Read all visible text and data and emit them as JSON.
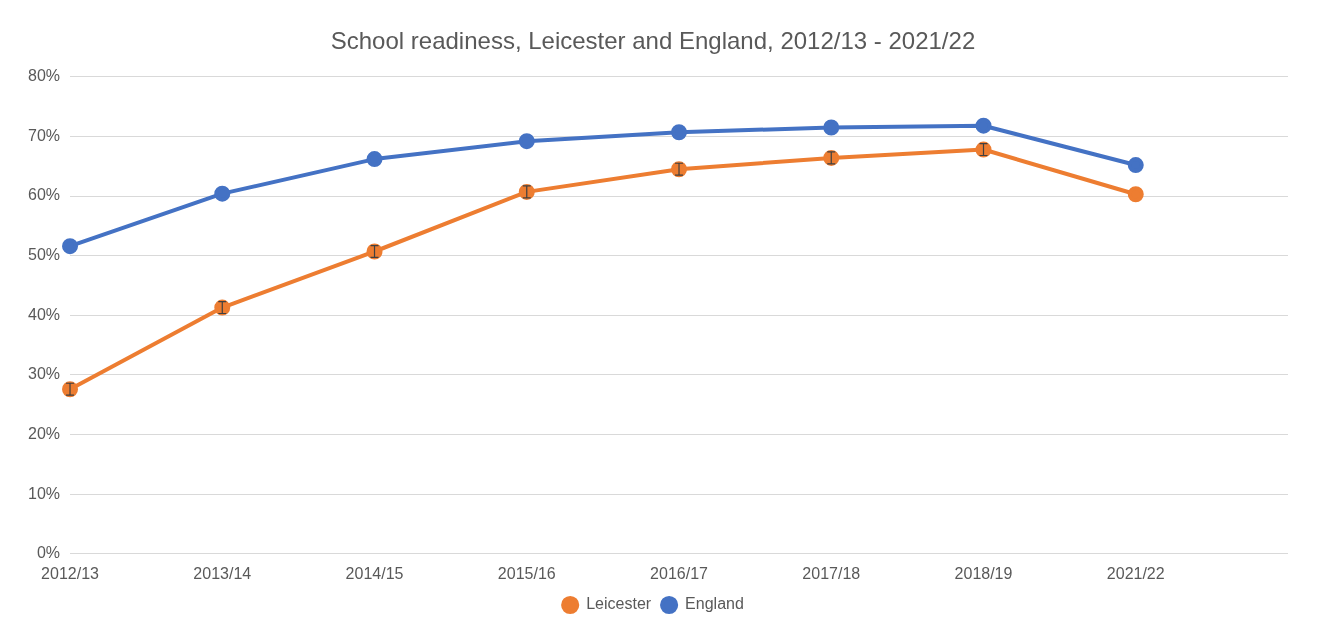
{
  "chart_data": {
    "type": "line",
    "title": "School readiness, Leicester and England, 2012/13 - 2021/22",
    "categories": [
      "2012/13",
      "2013/14",
      "2014/15",
      "2015/16",
      "2016/17",
      "2017/18",
      "2018/19",
      "2021/22",
      null
    ],
    "series": [
      {
        "name": "Leicester",
        "color": "#ed7d31",
        "values": [
          27.6,
          41.3,
          50.7,
          60.7,
          64.5,
          66.4,
          67.8,
          60.3,
          null
        ],
        "errors": [
          1,
          1,
          1,
          1,
          1,
          1,
          1,
          null,
          null
        ]
      },
      {
        "name": "England",
        "color": "#4472c4",
        "values": [
          51.6,
          60.4,
          66.2,
          69.2,
          70.7,
          71.5,
          71.8,
          65.2,
          null
        ]
      }
    ],
    "ylim": [
      0,
      80
    ],
    "yticks": [
      {
        "value": 0,
        "label": "0%"
      },
      {
        "value": 10,
        "label": "10%"
      },
      {
        "value": 20,
        "label": "20%"
      },
      {
        "value": 30,
        "label": "30%"
      },
      {
        "value": 40,
        "label": "40%"
      },
      {
        "value": 50,
        "label": "50%"
      },
      {
        "value": 60,
        "label": "60%"
      },
      {
        "value": 70,
        "label": "70%"
      },
      {
        "value": 80,
        "label": "80%"
      }
    ],
    "grid": "y",
    "legend": "bottom",
    "marker": "circle",
    "line_style": "solid"
  }
}
